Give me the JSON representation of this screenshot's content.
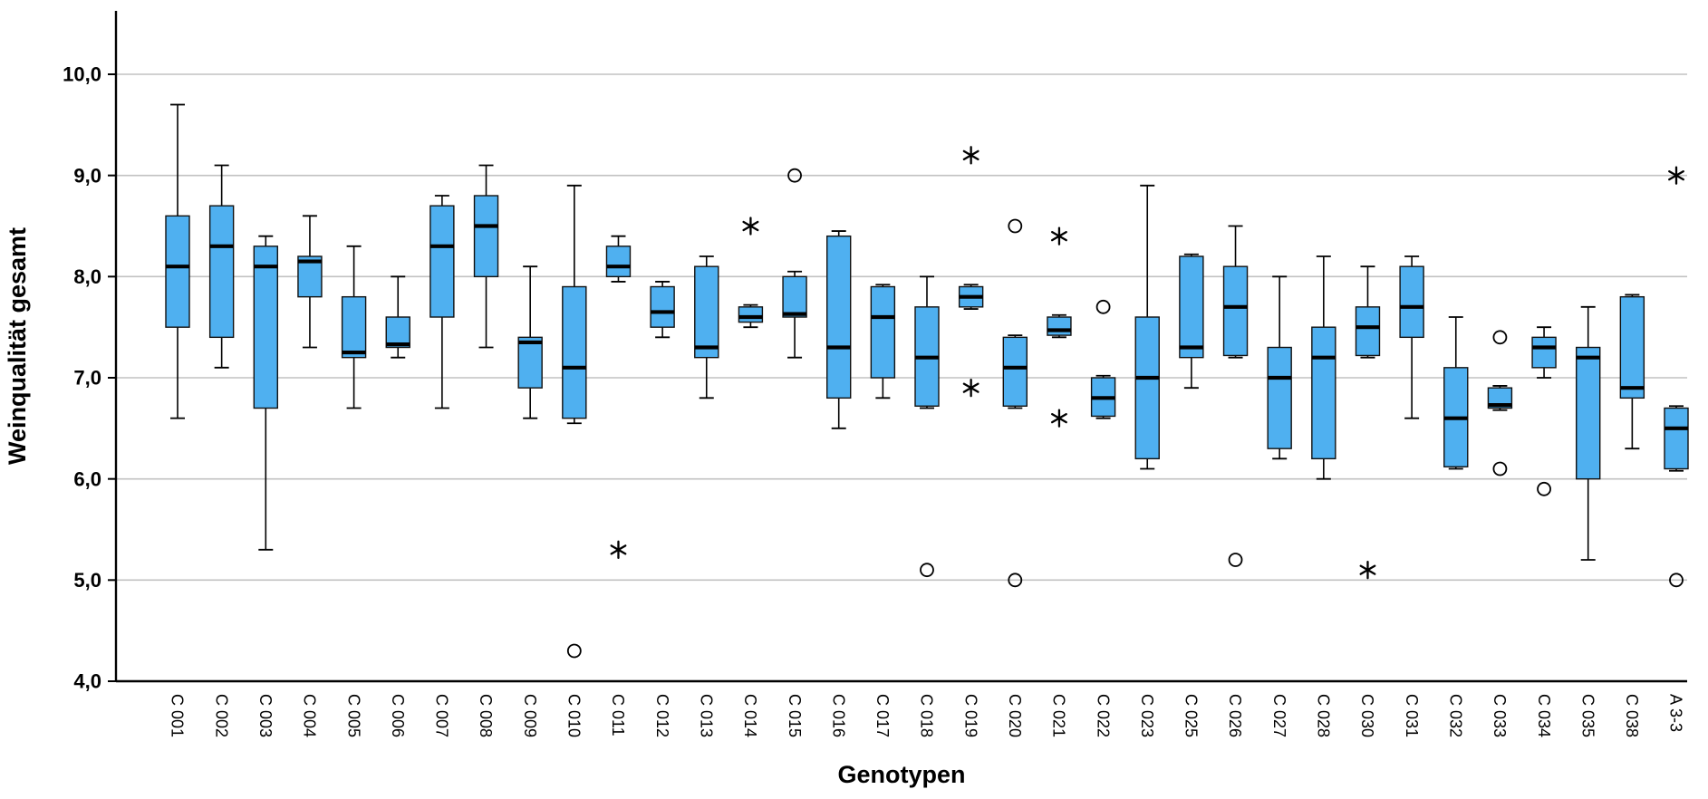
{
  "chart_data": {
    "type": "boxplot",
    "title": "",
    "xlabel": "Genotypen",
    "ylabel": "Weinqualität gesamt",
    "ylim": [
      4.0,
      10.0
    ],
    "yticks": [
      4.0,
      5.0,
      6.0,
      7.0,
      8.0,
      9.0,
      10.0
    ],
    "ytick_labels": [
      "4,0",
      "5,0",
      "6,0",
      "7,0",
      "8,0",
      "9,0",
      "10,0"
    ],
    "grid": true,
    "legend": false,
    "box_fill_color": "#4FB0F0",
    "box_stroke_color": "#111111",
    "gridline_color": "#c2c2c2",
    "categories": [
      "C 001",
      "C 002",
      "C 003",
      "C 004",
      "C 005",
      "C 006",
      "C 007",
      "C 008",
      "C 009",
      "C 010",
      "C 011",
      "C 012",
      "C 013",
      "C 014",
      "C 015",
      "C 016",
      "C 017",
      "C 018",
      "C 019",
      "C 020",
      "C 021",
      "C 022",
      "C 023",
      "C 025",
      "C 026",
      "C 027",
      "C 028",
      "C 030",
      "C 031",
      "C 032",
      "C 033",
      "C 034",
      "C 035",
      "C 038",
      "A 3-3"
    ],
    "series": [
      {
        "label": "C 001",
        "low": 6.6,
        "q1": 7.5,
        "median": 8.1,
        "q3": 8.6,
        "high": 9.7,
        "outliers": [],
        "extremes": []
      },
      {
        "label": "C 002",
        "low": 7.1,
        "q1": 7.4,
        "median": 8.3,
        "q3": 8.7,
        "high": 9.1,
        "outliers": [],
        "extremes": []
      },
      {
        "label": "C 003",
        "low": 5.3,
        "q1": 6.7,
        "median": 8.1,
        "q3": 8.3,
        "high": 8.4,
        "outliers": [],
        "extremes": []
      },
      {
        "label": "C 004",
        "low": 7.3,
        "q1": 7.8,
        "median": 8.15,
        "q3": 8.2,
        "high": 8.6,
        "outliers": [],
        "extremes": []
      },
      {
        "label": "C 005",
        "low": 6.7,
        "q1": 7.2,
        "median": 7.25,
        "q3": 7.8,
        "high": 8.3,
        "outliers": [],
        "extremes": []
      },
      {
        "label": "C 006",
        "low": 7.2,
        "q1": 7.3,
        "median": 7.33,
        "q3": 7.6,
        "high": 8.0,
        "outliers": [],
        "extremes": []
      },
      {
        "label": "C 007",
        "low": 6.7,
        "q1": 7.6,
        "median": 8.3,
        "q3": 8.7,
        "high": 8.8,
        "outliers": [],
        "extremes": []
      },
      {
        "label": "C 008",
        "low": 7.3,
        "q1": 8.0,
        "median": 8.5,
        "q3": 8.8,
        "high": 9.1,
        "outliers": [],
        "extremes": []
      },
      {
        "label": "C 009",
        "low": 6.6,
        "q1": 6.9,
        "median": 7.35,
        "q3": 7.4,
        "high": 8.1,
        "outliers": [],
        "extremes": []
      },
      {
        "label": "C 010",
        "low": 6.55,
        "q1": 6.6,
        "median": 7.1,
        "q3": 7.9,
        "high": 8.9,
        "outliers": [
          4.3
        ],
        "extremes": []
      },
      {
        "label": "C 011",
        "low": 7.95,
        "q1": 8.0,
        "median": 8.1,
        "q3": 8.3,
        "high": 8.4,
        "outliers": [],
        "extremes": [
          5.3
        ]
      },
      {
        "label": "C 012",
        "low": 7.4,
        "q1": 7.5,
        "median": 7.65,
        "q3": 7.9,
        "high": 7.95,
        "outliers": [],
        "extremes": []
      },
      {
        "label": "C 013",
        "low": 6.8,
        "q1": 7.2,
        "median": 7.3,
        "q3": 8.1,
        "high": 8.2,
        "outliers": [],
        "extremes": []
      },
      {
        "label": "C 014",
        "low": 7.5,
        "q1": 7.55,
        "median": 7.6,
        "q3": 7.7,
        "high": 7.72,
        "outliers": [],
        "extremes": [
          8.5
        ]
      },
      {
        "label": "C 015",
        "low": 7.2,
        "q1": 7.6,
        "median": 7.63,
        "q3": 8.0,
        "high": 8.05,
        "outliers": [
          9.0
        ],
        "extremes": []
      },
      {
        "label": "C 016",
        "low": 6.5,
        "q1": 6.8,
        "median": 7.3,
        "q3": 8.4,
        "high": 8.45,
        "outliers": [],
        "extremes": []
      },
      {
        "label": "C 017",
        "low": 6.8,
        "q1": 7.0,
        "median": 7.6,
        "q3": 7.9,
        "high": 7.92,
        "outliers": [],
        "extremes": []
      },
      {
        "label": "C 018",
        "low": 6.7,
        "q1": 6.72,
        "median": 7.2,
        "q3": 7.7,
        "high": 8.0,
        "outliers": [
          5.1
        ],
        "extremes": []
      },
      {
        "label": "C 019",
        "low": 7.68,
        "q1": 7.7,
        "median": 7.8,
        "q3": 7.9,
        "high": 7.92,
        "outliers": [],
        "extremes": [
          9.2,
          6.9
        ]
      },
      {
        "label": "C 020",
        "low": 6.7,
        "q1": 6.72,
        "median": 7.1,
        "q3": 7.4,
        "high": 7.42,
        "outliers": [
          8.5,
          5.0
        ],
        "extremes": []
      },
      {
        "label": "C 021",
        "low": 7.4,
        "q1": 7.42,
        "median": 7.47,
        "q3": 7.6,
        "high": 7.62,
        "outliers": [],
        "extremes": [
          8.4,
          6.6
        ]
      },
      {
        "label": "C 022",
        "low": 6.6,
        "q1": 6.62,
        "median": 6.8,
        "q3": 7.0,
        "high": 7.02,
        "outliers": [
          7.7
        ],
        "extremes": []
      },
      {
        "label": "C 023",
        "low": 6.1,
        "q1": 6.2,
        "median": 7.0,
        "q3": 7.6,
        "high": 8.9,
        "outliers": [],
        "extremes": []
      },
      {
        "label": "C 025",
        "low": 6.9,
        "q1": 7.2,
        "median": 7.3,
        "q3": 8.2,
        "high": 8.22,
        "outliers": [],
        "extremes": []
      },
      {
        "label": "C 026",
        "low": 7.2,
        "q1": 7.22,
        "median": 7.7,
        "q3": 8.1,
        "high": 8.5,
        "outliers": [
          5.2
        ],
        "extremes": []
      },
      {
        "label": "C 027",
        "low": 6.2,
        "q1": 6.3,
        "median": 7.0,
        "q3": 7.3,
        "high": 8.0,
        "outliers": [],
        "extremes": []
      },
      {
        "label": "C 028",
        "low": 6.0,
        "q1": 6.2,
        "median": 7.2,
        "q3": 7.5,
        "high": 8.2,
        "outliers": [],
        "extremes": []
      },
      {
        "label": "C 030",
        "low": 7.2,
        "q1": 7.22,
        "median": 7.5,
        "q3": 7.7,
        "high": 8.1,
        "outliers": [],
        "extremes": [
          5.1
        ]
      },
      {
        "label": "C 031",
        "low": 6.6,
        "q1": 7.4,
        "median": 7.7,
        "q3": 8.1,
        "high": 8.2,
        "outliers": [],
        "extremes": []
      },
      {
        "label": "C 032",
        "low": 6.1,
        "q1": 6.12,
        "median": 6.6,
        "q3": 7.1,
        "high": 7.6,
        "outliers": [],
        "extremes": []
      },
      {
        "label": "C 033",
        "low": 6.68,
        "q1": 6.7,
        "median": 6.73,
        "q3": 6.9,
        "high": 6.92,
        "outliers": [
          7.4,
          6.1
        ],
        "extremes": []
      },
      {
        "label": "C 034",
        "low": 7.0,
        "q1": 7.1,
        "median": 7.3,
        "q3": 7.4,
        "high": 7.5,
        "outliers": [
          5.9
        ],
        "extremes": []
      },
      {
        "label": "C 035",
        "low": 5.2,
        "q1": 6.0,
        "median": 7.2,
        "q3": 7.3,
        "high": 7.7,
        "outliers": [],
        "extremes": []
      },
      {
        "label": "C 038",
        "low": 6.3,
        "q1": 6.8,
        "median": 6.9,
        "q3": 7.8,
        "high": 7.82,
        "outliers": [],
        "extremes": []
      },
      {
        "label": "A 3-3",
        "low": 6.08,
        "q1": 6.1,
        "median": 6.5,
        "q3": 6.7,
        "high": 6.72,
        "outliers": [
          5.0
        ],
        "extremes": [
          9.0
        ]
      }
    ]
  }
}
